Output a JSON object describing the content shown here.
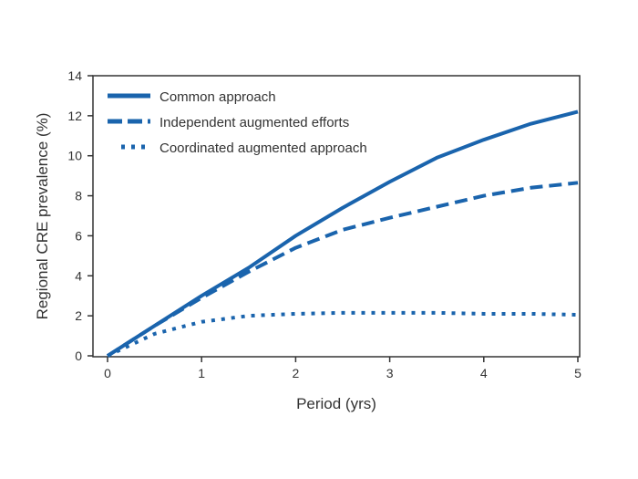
{
  "chart_data": {
    "type": "line",
    "title": "",
    "xlabel": "Period (yrs)",
    "ylabel": "Regional CRE prevalence (%)",
    "xlim": [
      0,
      5
    ],
    "ylim": [
      0,
      14
    ],
    "xticks": [
      "0",
      "1",
      "2",
      "3",
      "4",
      "5"
    ],
    "yticks": [
      "0",
      "2",
      "4",
      "6",
      "8",
      "10",
      "12",
      "14"
    ],
    "grid": false,
    "legend_position": "top-left",
    "color": "#1a64ad",
    "x": [
      0,
      0.5,
      1,
      1.5,
      2,
      2.5,
      3,
      3.5,
      4,
      4.5,
      5
    ],
    "series": [
      {
        "name": "Common approach",
        "style": "solid",
        "values": [
          0,
          1.5,
          3.0,
          4.4,
          6.0,
          7.4,
          8.7,
          9.9,
          10.8,
          11.6,
          12.2
        ]
      },
      {
        "name": "Independent augmented efforts",
        "style": "dashed",
        "values": [
          0,
          1.5,
          2.9,
          4.2,
          5.4,
          6.3,
          6.9,
          7.45,
          8.0,
          8.4,
          8.65
        ]
      },
      {
        "name": "Coordinated augmented approach",
        "style": "dotted",
        "values": [
          0,
          1.1,
          1.7,
          2.0,
          2.1,
          2.15,
          2.15,
          2.15,
          2.1,
          2.1,
          2.05
        ]
      }
    ]
  }
}
